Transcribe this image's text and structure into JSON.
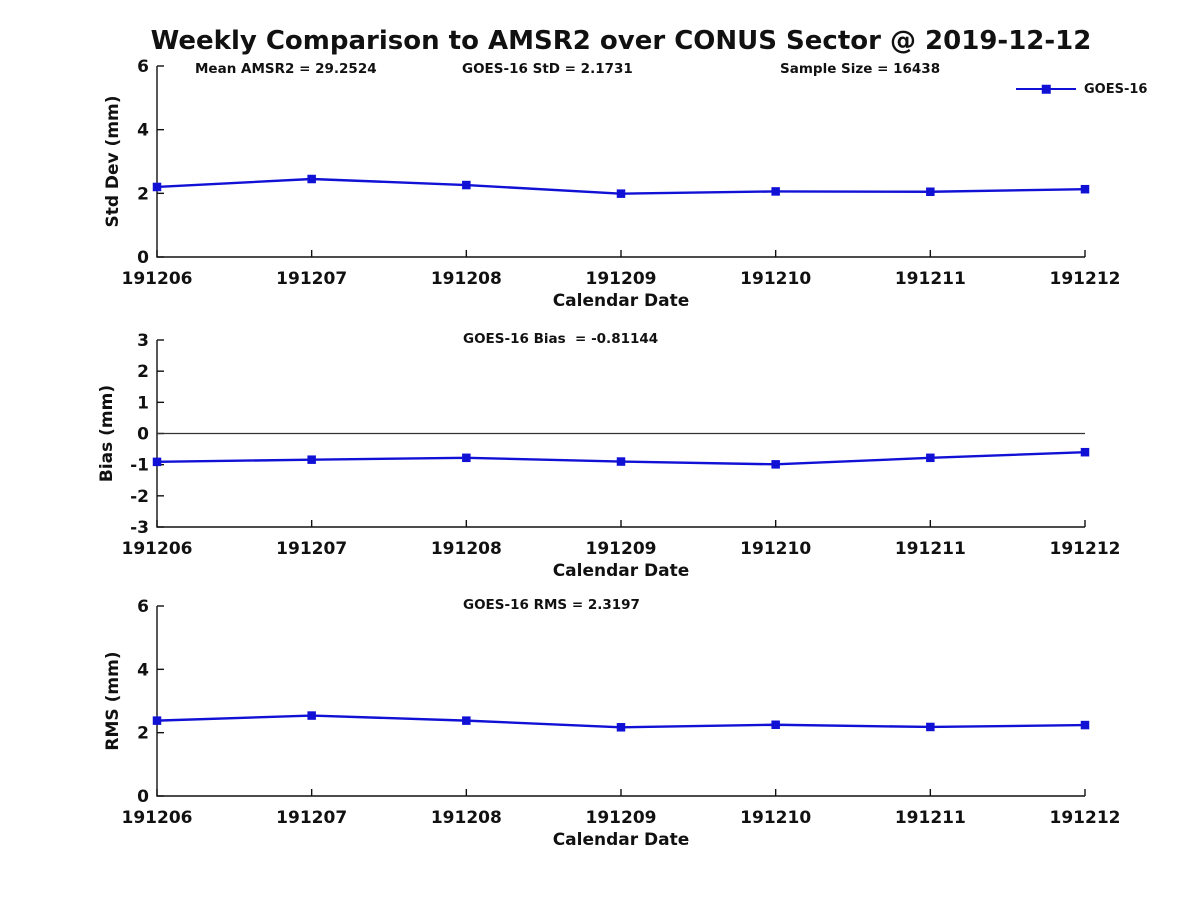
{
  "title": "Weekly Comparison to AMSR2 over CONUS Sector @ 2019-12-12",
  "legend": {
    "label": "GOES-16",
    "marker": "square-icon",
    "position": "outside-top-right"
  },
  "colors": {
    "series_line": "#1111d6",
    "axis": "#111111",
    "zero_line": "#333333",
    "background": "#ffffff"
  },
  "chart_data": [
    {
      "type": "line",
      "name": "std-dev-panel",
      "title": "",
      "ylabel": "Std Dev (mm)",
      "xlabel": "Calendar Date",
      "ylim": [
        0,
        6
      ],
      "yticks": [
        0,
        2,
        4,
        6
      ],
      "grid": false,
      "categories": [
        "191206",
        "191207",
        "191208",
        "191209",
        "191210",
        "191211",
        "191212"
      ],
      "series": [
        {
          "name": "GOES-16",
          "marker": "square",
          "values": [
            2.2,
            2.45,
            2.26,
            1.99,
            2.06,
            2.05,
            2.13
          ]
        }
      ],
      "annotations": [
        "Mean AMSR2 = 29.2524",
        "GOES-16 StD = 2.1731",
        "Sample Size = 16438"
      ]
    },
    {
      "type": "line",
      "name": "bias-panel",
      "title": "",
      "ylabel": "Bias (mm)",
      "xlabel": "Calendar Date",
      "ylim": [
        -3,
        3
      ],
      "yticks": [
        -3,
        -2,
        -1,
        0,
        1,
        2,
        3
      ],
      "grid": false,
      "zero_line": true,
      "categories": [
        "191206",
        "191207",
        "191208",
        "191209",
        "191210",
        "191211",
        "191212"
      ],
      "series": [
        {
          "name": "GOES-16",
          "marker": "square",
          "values": [
            -0.91,
            -0.84,
            -0.78,
            -0.9,
            -0.99,
            -0.78,
            -0.6
          ]
        }
      ],
      "annotations": [
        "GOES-16 Bias  = -0.81144"
      ]
    },
    {
      "type": "line",
      "name": "rms-panel",
      "title": "",
      "ylabel": "RMS (mm)",
      "xlabel": "Calendar Date",
      "ylim": [
        0,
        6
      ],
      "yticks": [
        0,
        2,
        4,
        6
      ],
      "grid": false,
      "categories": [
        "191206",
        "191207",
        "191208",
        "191209",
        "191210",
        "191211",
        "191212"
      ],
      "series": [
        {
          "name": "GOES-16",
          "marker": "square",
          "values": [
            2.38,
            2.54,
            2.38,
            2.17,
            2.25,
            2.18,
            2.24
          ]
        }
      ],
      "annotations": [
        "GOES-16 RMS = 2.3197"
      ]
    }
  ]
}
